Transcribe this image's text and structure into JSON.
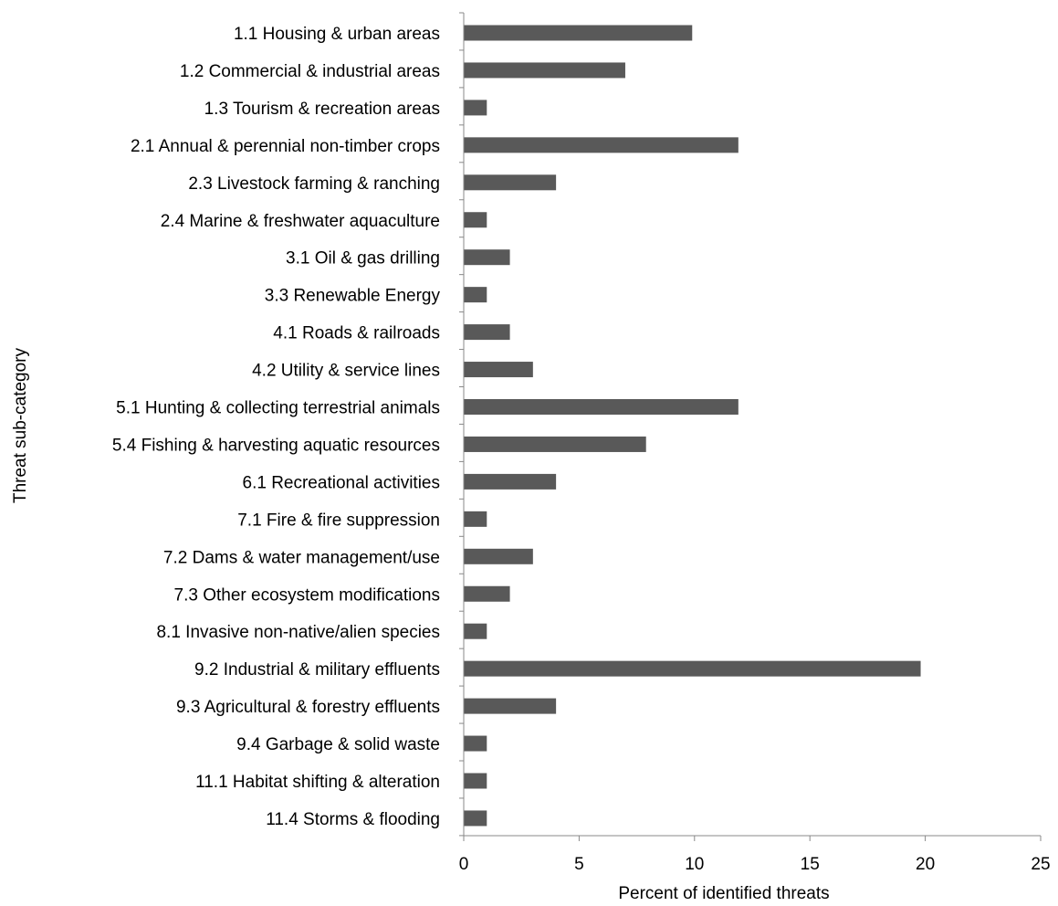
{
  "chart_data": {
    "type": "bar",
    "orientation": "horizontal",
    "title": "",
    "xlabel": "Percent of identified threats",
    "ylabel": "Threat sub-category",
    "xlim": [
      0,
      25
    ],
    "xticks": [
      "0",
      "5",
      "10",
      "15",
      "20",
      "25"
    ],
    "grid": false,
    "bar_color": "#595959",
    "categories": [
      "1.1 Housing & urban areas",
      "1.2 Commercial & industrial areas",
      "1.3 Tourism & recreation areas",
      "2.1 Annual & perennial non-timber crops",
      "2.3 Livestock farming & ranching",
      "2.4 Marine & freshwater aquaculture",
      "3.1 Oil & gas drilling",
      "3.3 Renewable Energy",
      "4.1 Roads & railroads",
      "4.2 Utility & service lines",
      "5.1 Hunting & collecting terrestrial animals",
      "5.4 Fishing & harvesting aquatic resources",
      "6.1 Recreational activities",
      "7.1 Fire & fire suppression",
      "7.2 Dams & water management/use",
      "7.3 Other ecosystem modifications",
      "8.1 Invasive non-native/alien species",
      "9.2 Industrial & military effluents",
      "9.3 Agricultural & forestry effluents",
      "9.4 Garbage & solid waste",
      "11.1 Habitat shifting & alteration",
      "11.4 Storms & flooding"
    ],
    "values": [
      9.9,
      7.0,
      1.0,
      11.9,
      4.0,
      1.0,
      2.0,
      1.0,
      2.0,
      3.0,
      11.9,
      7.9,
      4.0,
      1.0,
      3.0,
      2.0,
      1.0,
      19.8,
      4.0,
      1.0,
      1.0,
      1.0
    ]
  }
}
